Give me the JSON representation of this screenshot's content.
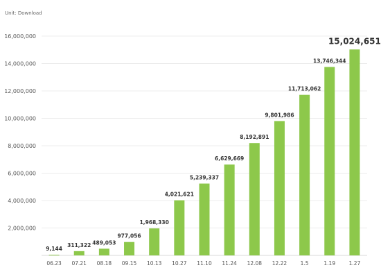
{
  "chart_data": {
    "type": "bar",
    "unit_label": "Unit: Download",
    "categories": [
      "06.23",
      "07.21",
      "08.18",
      "09.15",
      "10.13",
      "10.27",
      "11.10",
      "11.24",
      "12.08",
      "12.22",
      "1.5",
      "1.19",
      "1.27"
    ],
    "values": [
      9144,
      311322,
      489053,
      977056,
      1968330,
      4021621,
      5239337,
      6629669,
      8192891,
      9801986,
      11713062,
      13746344,
      15024651
    ],
    "data_labels": [
      "9,144",
      "311,322",
      "489,053",
      "977,056",
      "1,968,330",
      "4,021,621",
      "5,239,337",
      "6,629,669",
      "8,192,891",
      "9,801,986",
      "11,713,062",
      "13,746,344",
      "15,024,651"
    ],
    "y_ticks": [
      2000000,
      4000000,
      6000000,
      8000000,
      10000000,
      12000000,
      14000000,
      16000000
    ],
    "y_tick_labels": [
      "2,000,000",
      "4,000,000",
      "6,000,000",
      "8,000,000",
      "10,000,000",
      "12,000,000",
      "14,000,000",
      "16,000,000"
    ],
    "ylim": [
      0,
      16000000
    ],
    "grid": true,
    "bar_color": "#8dc84b",
    "highlight_last_label": true
  }
}
